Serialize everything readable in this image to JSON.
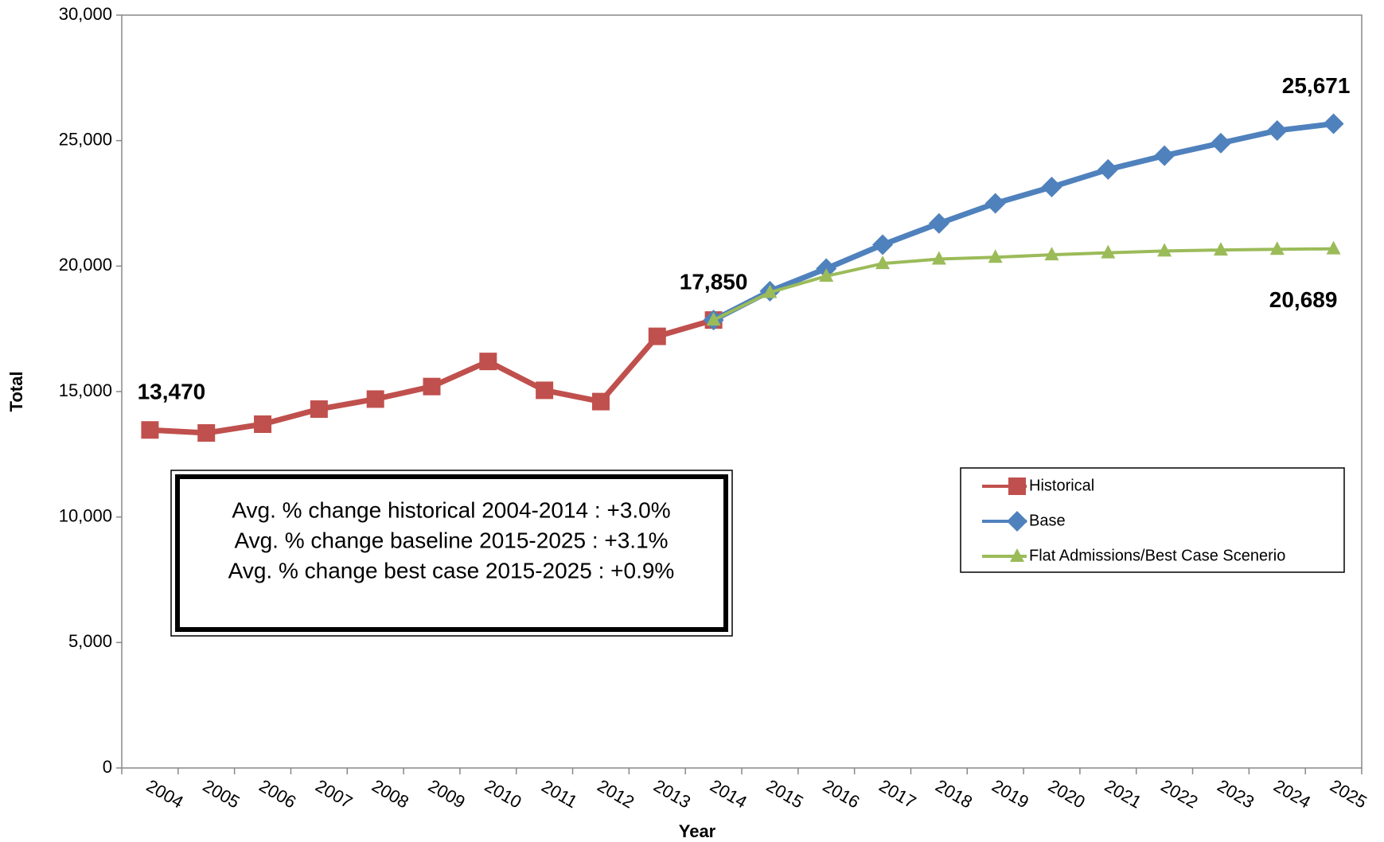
{
  "chart_data": {
    "type": "line",
    "x_label": "Year",
    "y_label": "Total",
    "categories": [
      "2004",
      "2005",
      "2006",
      "2007",
      "2008",
      "2009",
      "2010",
      "2011",
      "2012",
      "2013",
      "2014",
      "2015",
      "2016",
      "2017",
      "2018",
      "2019",
      "2020",
      "2021",
      "2022",
      "2023",
      "2024",
      "2025"
    ],
    "series": [
      {
        "name": "Historical",
        "color": "#c0504d",
        "marker": "square",
        "values": [
          13470,
          13350,
          13700,
          14300,
          14700,
          15200,
          16200,
          15050,
          14600,
          17200,
          17850,
          null,
          null,
          null,
          null,
          null,
          null,
          null,
          null,
          null,
          null,
          null
        ],
        "value_labels": [
          "13,470",
          null,
          null,
          null,
          null,
          null,
          null,
          null,
          null,
          null,
          "17,850",
          null,
          null,
          null,
          null,
          null,
          null,
          null,
          null,
          null,
          null,
          null
        ]
      },
      {
        "name": "Base",
        "color": "#4f81bd",
        "marker": "diamond",
        "values": [
          null,
          null,
          null,
          null,
          null,
          null,
          null,
          null,
          null,
          null,
          17850,
          19000,
          19900,
          20850,
          21700,
          22500,
          23150,
          23850,
          24400,
          24900,
          25400,
          25671
        ],
        "value_labels": [
          null,
          null,
          null,
          null,
          null,
          null,
          null,
          null,
          null,
          null,
          null,
          null,
          null,
          null,
          null,
          null,
          null,
          null,
          null,
          null,
          null,
          "25,671"
        ]
      },
      {
        "name": "Flat Admissions/Best Case Scenerio",
        "color": "#9bbb59",
        "marker": "triangle",
        "values": [
          null,
          null,
          null,
          null,
          null,
          null,
          null,
          null,
          null,
          null,
          17850,
          18950,
          19600,
          20100,
          20280,
          20350,
          20450,
          20530,
          20600,
          20640,
          20670,
          20689
        ],
        "value_labels": [
          null,
          null,
          null,
          null,
          null,
          null,
          null,
          null,
          null,
          null,
          null,
          null,
          null,
          null,
          null,
          null,
          null,
          null,
          null,
          null,
          null,
          "20,689"
        ]
      }
    ],
    "ylim": [
      0,
      30000
    ],
    "yticks": [
      0,
      {
        "value": 5000,
        "label": "5,000"
      },
      {
        "value": 10000,
        "label": "10,000"
      },
      {
        "value": 15000,
        "label": "15,000"
      },
      {
        "value": 20000,
        "label": "20,000"
      },
      {
        "value": 25000,
        "label": "25,000"
      },
      {
        "value": 30000,
        "label": "30,000"
      }
    ],
    "grid": false,
    "legend": "right",
    "annotations": [
      "Avg. % change historical 2004-2014 : +3.0%",
      "Avg. % change baseline 2015-2025 : +3.1%",
      "Avg. % change best case 2015-2025 : +0.9%"
    ]
  }
}
